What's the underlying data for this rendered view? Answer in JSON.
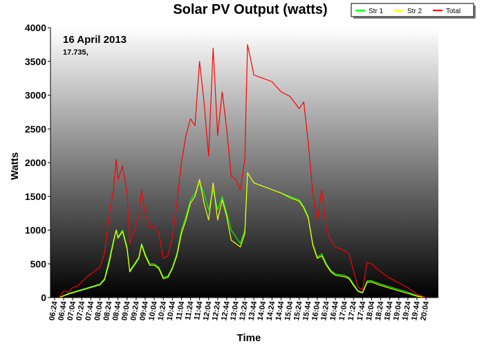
{
  "chart_data": {
    "type": "line",
    "title": "Solar PV Output (watts)",
    "xlabel": "Time",
    "ylabel": "Watts",
    "ylim": [
      0,
      4000
    ],
    "yticks": [
      0,
      500,
      1000,
      1500,
      2000,
      2500,
      3000,
      3500,
      4000
    ],
    "xticks": [
      "06:24",
      "06:44",
      "07:04",
      "07:24",
      "07:44",
      "08:04",
      "08:24",
      "08:44",
      "09:04",
      "09:24",
      "09:44",
      "10:04",
      "10:24",
      "10:44",
      "11:04",
      "11:24",
      "11:44",
      "12:04",
      "12:24",
      "12:44",
      "13:04",
      "13:24",
      "13:44",
      "14:04",
      "14:24",
      "14:44",
      "15:04",
      "15:24",
      "15:44",
      "16:04",
      "16:24",
      "16:44",
      "17:04",
      "17:24",
      "17:44",
      "18:04",
      "18:24",
      "18:44",
      "19:04",
      "19:24",
      "19:44",
      "20:04"
    ],
    "annotations": {
      "date": "16 April 2013",
      "total": "17.735,"
    },
    "legend_position": "top-right",
    "series": [
      {
        "name": "Str 1",
        "color": "#00ff00",
        "points": [
          [
            "06:34",
            0
          ],
          [
            "06:44",
            30
          ],
          [
            "06:54",
            60
          ],
          [
            "07:04",
            80
          ],
          [
            "07:14",
            100
          ],
          [
            "07:24",
            120
          ],
          [
            "07:34",
            140
          ],
          [
            "07:44",
            160
          ],
          [
            "07:54",
            180
          ],
          [
            "08:04",
            200
          ],
          [
            "08:14",
            280
          ],
          [
            "08:24",
            550
          ],
          [
            "08:34",
            850
          ],
          [
            "08:40",
            1000
          ],
          [
            "08:44",
            900
          ],
          [
            "08:54",
            1000
          ],
          [
            "09:04",
            750
          ],
          [
            "09:10",
            400
          ],
          [
            "09:20",
            500
          ],
          [
            "09:30",
            600
          ],
          [
            "09:36",
            800
          ],
          [
            "09:44",
            650
          ],
          [
            "09:54",
            500
          ],
          [
            "10:04",
            500
          ],
          [
            "10:14",
            450
          ],
          [
            "10:24",
            300
          ],
          [
            "10:34",
            320
          ],
          [
            "10:44",
            450
          ],
          [
            "10:54",
            650
          ],
          [
            "11:04",
            1000
          ],
          [
            "11:14",
            1200
          ],
          [
            "11:24",
            1450
          ],
          [
            "11:34",
            1550
          ],
          [
            "11:44",
            1700
          ],
          [
            "11:54",
            1550
          ],
          [
            "12:04",
            1300
          ],
          [
            "12:14",
            1600
          ],
          [
            "12:24",
            1300
          ],
          [
            "12:34",
            1500
          ],
          [
            "12:44",
            1250
          ],
          [
            "12:54",
            1000
          ],
          [
            "13:04",
            900
          ],
          [
            "13:14",
            800
          ],
          [
            "13:24",
            1000
          ],
          [
            "13:30",
            1850
          ],
          [
            "13:44",
            1700
          ],
          [
            "14:04",
            1650
          ],
          [
            "14:24",
            1600
          ],
          [
            "14:44",
            1550
          ],
          [
            "15:04",
            1500
          ],
          [
            "15:24",
            1450
          ],
          [
            "15:34",
            1350
          ],
          [
            "15:44",
            1200
          ],
          [
            "15:54",
            800
          ],
          [
            "16:04",
            600
          ],
          [
            "16:14",
            650
          ],
          [
            "16:24",
            500
          ],
          [
            "16:34",
            400
          ],
          [
            "16:44",
            350
          ],
          [
            "17:04",
            330
          ],
          [
            "17:14",
            300
          ],
          [
            "17:24",
            200
          ],
          [
            "17:34",
            100
          ],
          [
            "17:44",
            80
          ],
          [
            "17:54",
            250
          ],
          [
            "18:04",
            250
          ],
          [
            "18:24",
            200
          ],
          [
            "18:44",
            160
          ],
          [
            "19:04",
            120
          ],
          [
            "19:24",
            80
          ],
          [
            "19:44",
            30
          ],
          [
            "20:04",
            0
          ]
        ]
      },
      {
        "name": "Str 2",
        "color": "#ffff00",
        "points": [
          [
            "06:34",
            0
          ],
          [
            "06:44",
            25
          ],
          [
            "06:54",
            50
          ],
          [
            "07:04",
            70
          ],
          [
            "07:14",
            90
          ],
          [
            "07:24",
            110
          ],
          [
            "07:34",
            130
          ],
          [
            "07:44",
            150
          ],
          [
            "07:54",
            170
          ],
          [
            "08:04",
            190
          ],
          [
            "08:14",
            260
          ],
          [
            "08:24",
            500
          ],
          [
            "08:34",
            820
          ],
          [
            "08:40",
            1000
          ],
          [
            "08:44",
            880
          ],
          [
            "08:54",
            980
          ],
          [
            "09:04",
            720
          ],
          [
            "09:10",
            380
          ],
          [
            "09:20",
            480
          ],
          [
            "09:30",
            580
          ],
          [
            "09:36",
            780
          ],
          [
            "09:44",
            620
          ],
          [
            "09:54",
            480
          ],
          [
            "10:04",
            480
          ],
          [
            "10:14",
            430
          ],
          [
            "10:24",
            280
          ],
          [
            "10:34",
            300
          ],
          [
            "10:44",
            430
          ],
          [
            "10:54",
            620
          ],
          [
            "11:04",
            950
          ],
          [
            "11:14",
            1150
          ],
          [
            "11:24",
            1400
          ],
          [
            "11:34",
            1500
          ],
          [
            "11:44",
            1750
          ],
          [
            "11:54",
            1400
          ],
          [
            "12:04",
            1150
          ],
          [
            "12:14",
            1700
          ],
          [
            "12:24",
            1150
          ],
          [
            "12:34",
            1450
          ],
          [
            "12:44",
            1200
          ],
          [
            "12:54",
            850
          ],
          [
            "13:04",
            800
          ],
          [
            "13:14",
            750
          ],
          [
            "13:24",
            950
          ],
          [
            "13:30",
            1850
          ],
          [
            "13:44",
            1700
          ],
          [
            "14:04",
            1650
          ],
          [
            "14:24",
            1600
          ],
          [
            "14:44",
            1550
          ],
          [
            "15:04",
            1480
          ],
          [
            "15:24",
            1430
          ],
          [
            "15:34",
            1330
          ],
          [
            "15:44",
            1180
          ],
          [
            "15:54",
            780
          ],
          [
            "16:04",
            580
          ],
          [
            "16:14",
            620
          ],
          [
            "16:24",
            480
          ],
          [
            "16:34",
            380
          ],
          [
            "16:44",
            330
          ],
          [
            "17:04",
            310
          ],
          [
            "17:14",
            280
          ],
          [
            "17:24",
            180
          ],
          [
            "17:34",
            90
          ],
          [
            "17:44",
            70
          ],
          [
            "17:54",
            230
          ],
          [
            "18:04",
            230
          ],
          [
            "18:24",
            180
          ],
          [
            "18:44",
            140
          ],
          [
            "19:04",
            100
          ],
          [
            "19:24",
            60
          ],
          [
            "19:44",
            20
          ],
          [
            "20:04",
            0
          ]
        ]
      },
      {
        "name": "Total",
        "color": "#ff0000",
        "points": [
          [
            "06:34",
            0
          ],
          [
            "06:44",
            100
          ],
          [
            "06:54",
            80
          ],
          [
            "07:04",
            150
          ],
          [
            "07:14",
            170
          ],
          [
            "07:24",
            230
          ],
          [
            "07:34",
            300
          ],
          [
            "07:44",
            350
          ],
          [
            "07:54",
            400
          ],
          [
            "08:04",
            450
          ],
          [
            "08:14",
            650
          ],
          [
            "08:24",
            1200
          ],
          [
            "08:34",
            1600
          ],
          [
            "08:40",
            2050
          ],
          [
            "08:44",
            1750
          ],
          [
            "08:54",
            1950
          ],
          [
            "09:04",
            1550
          ],
          [
            "09:10",
            800
          ],
          [
            "09:20",
            1000
          ],
          [
            "09:30",
            1200
          ],
          [
            "09:36",
            1600
          ],
          [
            "09:44",
            1250
          ],
          [
            "09:54",
            1050
          ],
          [
            "10:04",
            1050
          ],
          [
            "10:14",
            950
          ],
          [
            "10:24",
            580
          ],
          [
            "10:34",
            620
          ],
          [
            "10:44",
            900
          ],
          [
            "10:54",
            1400
          ],
          [
            "11:04",
            2000
          ],
          [
            "11:14",
            2400
          ],
          [
            "11:24",
            2650
          ],
          [
            "11:34",
            2550
          ],
          [
            "11:44",
            3500
          ],
          [
            "11:54",
            2900
          ],
          [
            "12:04",
            2100
          ],
          [
            "12:14",
            3700
          ],
          [
            "12:24",
            2400
          ],
          [
            "12:34",
            3050
          ],
          [
            "12:44",
            2500
          ],
          [
            "12:54",
            1800
          ],
          [
            "13:04",
            1750
          ],
          [
            "13:14",
            1600
          ],
          [
            "13:24",
            2050
          ],
          [
            "13:30",
            3750
          ],
          [
            "13:44",
            3300
          ],
          [
            "14:04",
            3250
          ],
          [
            "14:24",
            3200
          ],
          [
            "14:44",
            3050
          ],
          [
            "15:04",
            2980
          ],
          [
            "15:24",
            2800
          ],
          [
            "15:34",
            2900
          ],
          [
            "15:44",
            2300
          ],
          [
            "15:54",
            1550
          ],
          [
            "16:04",
            1150
          ],
          [
            "16:14",
            1600
          ],
          [
            "16:24",
            1000
          ],
          [
            "16:34",
            850
          ],
          [
            "16:44",
            750
          ],
          [
            "17:04",
            700
          ],
          [
            "17:14",
            650
          ],
          [
            "17:24",
            400
          ],
          [
            "17:34",
            150
          ],
          [
            "17:44",
            120
          ],
          [
            "17:54",
            520
          ],
          [
            "18:04",
            500
          ],
          [
            "18:24",
            380
          ],
          [
            "18:44",
            290
          ],
          [
            "19:04",
            220
          ],
          [
            "19:24",
            150
          ],
          [
            "19:44",
            50
          ],
          [
            "20:04",
            0
          ]
        ]
      }
    ]
  }
}
